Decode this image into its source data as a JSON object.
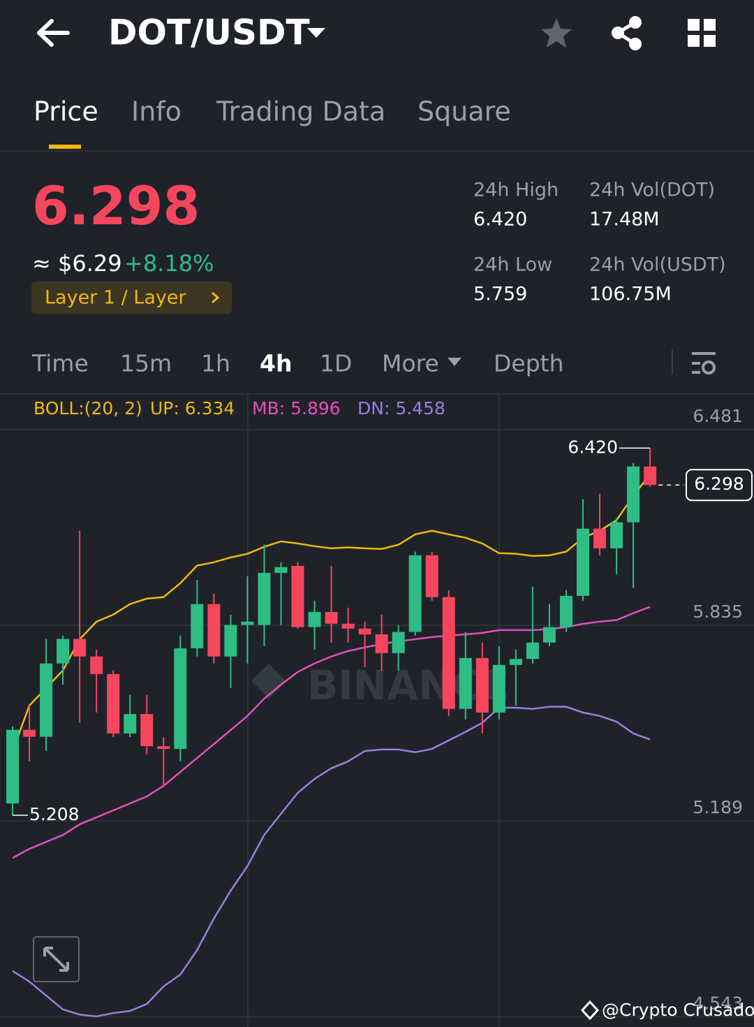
{
  "header": {
    "title": "DOT/USDT"
  },
  "tabs": [
    "Price",
    "Info",
    "Trading Data",
    "Square"
  ],
  "price": "6.298",
  "approx": "≈ $6.29",
  "change": "+8.18%",
  "tag": "Layer 1 / Layer",
  "stats": [
    {
      "label": "24h High",
      "value": "6.420"
    },
    {
      "label": "24h Vol(DOT)",
      "value": "17.48M"
    },
    {
      "label": "24h Low",
      "value": "5.759"
    },
    {
      "label": "24h Vol(USDT)",
      "value": "106.75M"
    }
  ],
  "intervals": [
    "Time",
    "15m",
    "1h",
    "4h",
    "1D",
    "More",
    "Depth"
  ],
  "watermark": "BINANCE",
  "credit": "@Crypto Crusador",
  "chart_data": {
    "type": "candlestick",
    "open": [
      5.247,
      5.49,
      5.467,
      5.709,
      5.79,
      5.732,
      5.674,
      5.478,
      5.542,
      5.436,
      5.427,
      5.759,
      5.905,
      5.732,
      5.836,
      5.836,
      6.008,
      6.031,
      5.829,
      5.879,
      5.84,
      5.824,
      5.805,
      5.743,
      5.813,
      6.066,
      5.928,
      5.559,
      5.727,
      5.547,
      5.704,
      5.724,
      5.778,
      5.829,
      5.932,
      6.154,
      6.089,
      6.175,
      6.359
    ],
    "high": [
      5.501,
      5.57,
      5.79,
      5.801,
      6.147,
      5.755,
      5.686,
      5.605,
      5.605,
      5.466,
      5.801,
      5.985,
      5.939,
      5.87,
      5.997,
      6.101,
      6.043,
      6.043,
      5.916,
      6.031,
      5.893,
      5.847,
      5.87,
      5.836,
      6.078,
      6.078,
      5.951,
      5.813,
      5.778,
      5.766,
      5.755,
      5.962,
      5.905,
      5.951,
      6.251,
      6.269,
      6.189,
      6.371,
      6.42
    ],
    "low": [
      5.208,
      5.386,
      5.42,
      5.639,
      5.513,
      5.547,
      5.466,
      5.466,
      5.409,
      5.305,
      5.386,
      5.732,
      5.709,
      5.628,
      5.709,
      5.766,
      5.836,
      5.824,
      5.755,
      5.778,
      5.778,
      5.697,
      5.685,
      5.685,
      5.801,
      5.916,
      5.536,
      5.524,
      5.478,
      5.524,
      5.57,
      5.709,
      5.766,
      5.813,
      5.916,
      6.066,
      6.004,
      5.958,
      6.292
    ],
    "close": [
      5.49,
      5.467,
      5.709,
      5.79,
      5.732,
      5.674,
      5.478,
      5.542,
      5.436,
      5.427,
      5.759,
      5.905,
      5.732,
      5.836,
      5.847,
      6.008,
      6.027,
      5.829,
      5.879,
      5.84,
      5.824,
      5.805,
      5.743,
      5.813,
      6.066,
      5.928,
      5.559,
      5.727,
      5.547,
      5.704,
      5.724,
      5.778,
      5.829,
      5.932,
      6.154,
      6.089,
      6.175,
      6.359,
      6.298
    ],
    "up_color": "#2ebd85",
    "down_color": "#f6465d",
    "boll": {
      "label": "BOLL:(20, 2)",
      "up": {
        "text": "UP: 6.334",
        "color": "#f0b90b",
        "values": [
          5.42,
          5.57,
          5.628,
          5.686,
          5.789,
          5.847,
          5.87,
          5.905,
          5.923,
          5.928,
          5.974,
          6.032,
          6.043,
          6.059,
          6.071,
          6.094,
          6.112,
          6.105,
          6.096,
          6.089,
          6.092,
          6.089,
          6.087,
          6.101,
          6.135,
          6.147,
          6.135,
          6.124,
          6.105,
          6.073,
          6.071,
          6.064,
          6.066,
          6.078,
          6.124,
          6.147,
          6.182,
          6.262,
          6.334
        ]
      },
      "mb": {
        "text": "MB: 5.896",
        "color": "#e44fbd",
        "values": [
          5.067,
          5.097,
          5.12,
          5.143,
          5.178,
          5.201,
          5.224,
          5.247,
          5.27,
          5.305,
          5.351,
          5.397,
          5.443,
          5.489,
          5.536,
          5.593,
          5.639,
          5.681,
          5.709,
          5.732,
          5.75,
          5.762,
          5.773,
          5.782,
          5.789,
          5.796,
          5.801,
          5.805,
          5.81,
          5.819,
          5.819,
          5.819,
          5.822,
          5.829,
          5.84,
          5.847,
          5.852,
          5.875,
          5.896
        ]
      },
      "dn": {
        "text": "DN: 5.458",
        "color": "#9a7ee0",
        "values": [
          4.694,
          4.659,
          4.613,
          4.567,
          4.55,
          4.544,
          4.555,
          4.562,
          4.585,
          4.643,
          4.682,
          4.763,
          4.867,
          4.959,
          5.04,
          5.143,
          5.213,
          5.282,
          5.328,
          5.363,
          5.386,
          5.42,
          5.425,
          5.425,
          5.416,
          5.427,
          5.455,
          5.483,
          5.513,
          5.563,
          5.563,
          5.559,
          5.566,
          5.566,
          5.547,
          5.536,
          5.517,
          5.478,
          5.458
        ]
      }
    },
    "high_label": "6.420",
    "low_label": "5.208",
    "last_label": "6.298",
    "ylim": [
      4.509,
      6.596
    ],
    "yticks": [
      6.481,
      5.835,
      5.189,
      4.543
    ],
    "grid": true
  }
}
